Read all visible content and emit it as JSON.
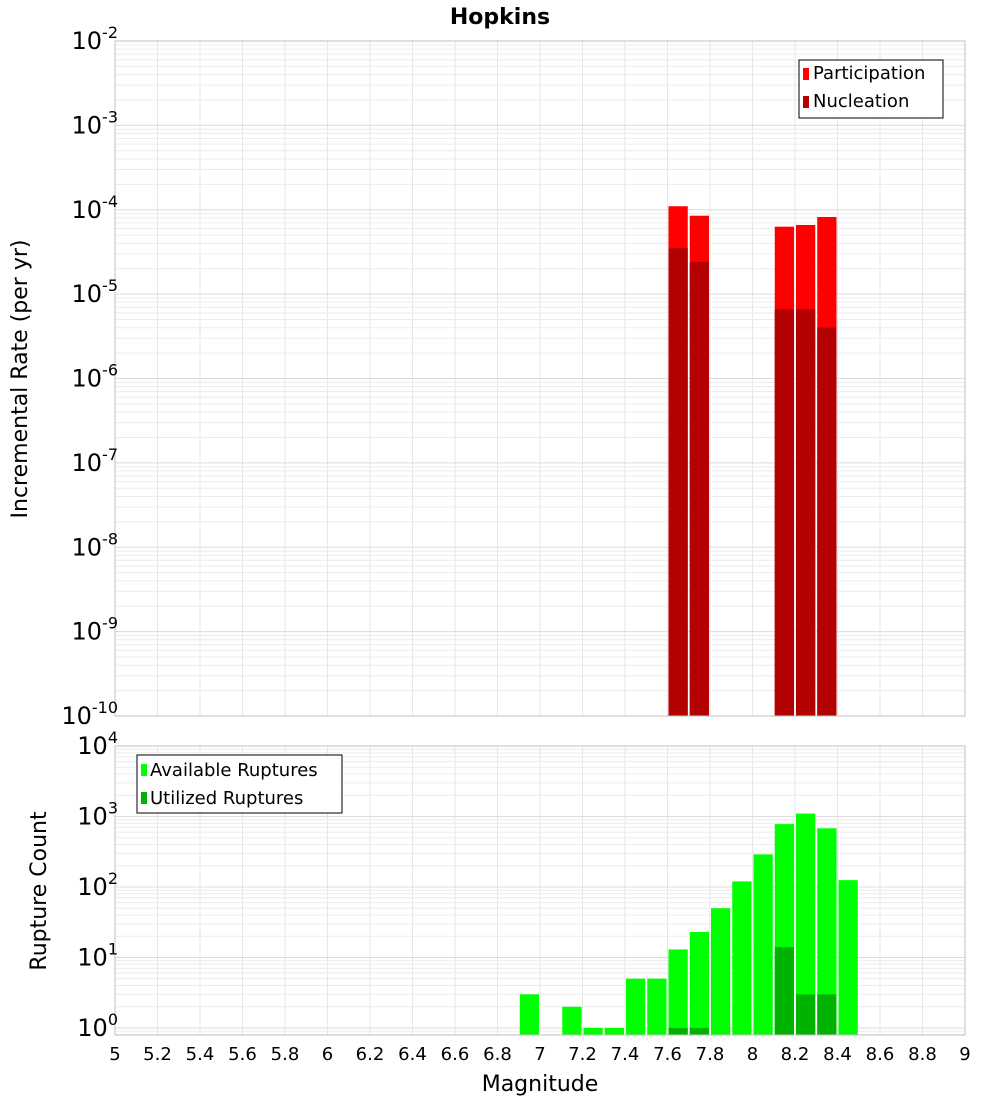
{
  "title": "Hopkins",
  "colors": {
    "participation": "#ff0000",
    "nucleation": "#b30000",
    "available": "#00ff00",
    "utilized": "#00b300",
    "grid": "#e6e6e6",
    "frame": "#c0c0c0"
  },
  "chart_data": [
    {
      "type": "bar",
      "name": "incremental-rate",
      "ylabel": "Incremental Rate (per yr)",
      "yscale": "log",
      "ylim_exp": [
        -10,
        -2
      ],
      "ytick_exps": [
        "-10",
        "-9",
        "-8",
        "-7",
        "-6",
        "-5",
        "-4",
        "-3",
        "-2"
      ],
      "xlim": [
        5,
        9
      ],
      "bin_width": 0.1,
      "legend": {
        "position": "top-right",
        "entries": [
          "Participation",
          "Nucleation"
        ]
      },
      "series": [
        {
          "name": "Participation",
          "x": [
            7.65,
            7.75,
            8.15,
            8.25,
            8.35
          ],
          "values": [
            0.00011,
            8.5e-05,
            6.3e-05,
            6.6e-05,
            8.2e-05
          ]
        },
        {
          "name": "Nucleation",
          "x": [
            7.65,
            7.75,
            8.15,
            8.25,
            8.35
          ],
          "values": [
            3.5e-05,
            2.4e-05,
            6.6e-06,
            6.6e-06,
            4e-06
          ]
        }
      ]
    },
    {
      "type": "bar",
      "name": "rupture-count",
      "ylabel": "Rupture Count",
      "yscale": "log",
      "ylim_exp": [
        -0.1,
        4
      ],
      "ytick_exps": [
        "0",
        "1",
        "2",
        "3",
        "4"
      ],
      "xlim": [
        5,
        9
      ],
      "bin_width": 0.1,
      "xlabel": "Magnitude",
      "xticks": [
        "5",
        "5.2",
        "5.4",
        "5.6",
        "5.8",
        "6",
        "6.2",
        "6.4",
        "6.6",
        "6.8",
        "7",
        "7.2",
        "7.4",
        "7.6",
        "7.8",
        "8",
        "8.2",
        "8.4",
        "8.6",
        "8.8",
        "9"
      ],
      "legend": {
        "position": "top-left",
        "entries": [
          "Available Ruptures",
          "Utilized Ruptures"
        ]
      },
      "series": [
        {
          "name": "Available Ruptures",
          "x": [
            6.95,
            7.15,
            7.25,
            7.35,
            7.45,
            7.55,
            7.65,
            7.75,
            7.85,
            7.95,
            8.05,
            8.15,
            8.25,
            8.35,
            8.45
          ],
          "values": [
            3,
            2,
            1,
            1,
            5,
            5,
            13,
            23,
            50,
            120,
            290,
            780,
            1100,
            680,
            125
          ]
        },
        {
          "name": "Utilized Ruptures",
          "x": [
            7.65,
            7.75,
            8.15,
            8.25,
            8.35
          ],
          "values": [
            1,
            1,
            14,
            3,
            3
          ]
        }
      ]
    }
  ]
}
